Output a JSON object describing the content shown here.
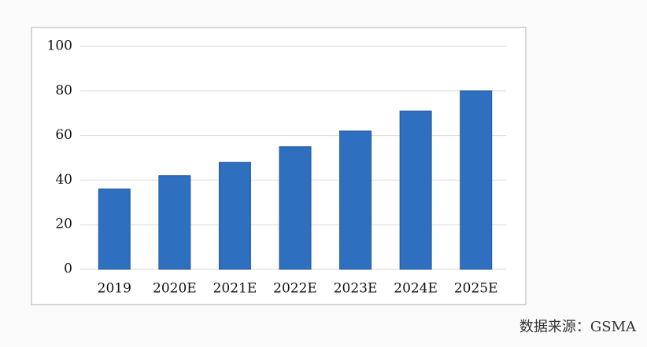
{
  "chart_data": {
    "type": "bar",
    "categories": [
      "2019",
      "2020E",
      "2021E",
      "2022E",
      "2023E",
      "2024E",
      "2025E"
    ],
    "values": [
      36,
      42,
      48,
      55,
      62,
      71,
      80
    ],
    "color": "#2f6fbf",
    "ylim": [
      0,
      100
    ],
    "yticks": [
      0,
      20,
      40,
      60,
      80,
      100
    ],
    "grid": true,
    "source": "数据来源：GSMA"
  }
}
